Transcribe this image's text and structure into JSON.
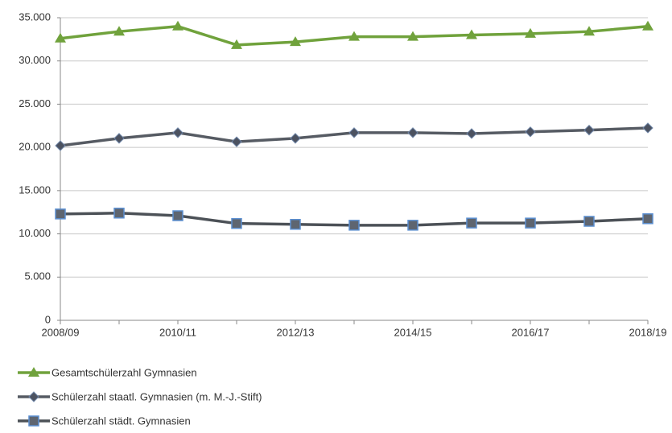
{
  "chart_data": {
    "type": "line",
    "categories": [
      "2008/09",
      null,
      "2010/11",
      null,
      "2012/13",
      null,
      "2014/15",
      null,
      "2016/17",
      null,
      "2018/19"
    ],
    "series": [
      {
        "name": "Gesamtschülerzahl Gymnasien",
        "color": "#70a23c",
        "marker": "triangle",
        "values": [
          32600,
          33400,
          34000,
          31850,
          32200,
          32800,
          32800,
          33000,
          33150,
          33400,
          34000
        ]
      },
      {
        "name": "Schülerzahl staatl. Gymnasien (m. M.-J.-Stift)",
        "color": "#565b63",
        "marker": "diamond",
        "values": [
          20200,
          21050,
          21700,
          20650,
          21050,
          21700,
          21700,
          21600,
          21800,
          22000,
          22250
        ]
      },
      {
        "name": "Schülerzahl städt. Gymnasien",
        "color": "#4c5157",
        "marker": "square",
        "values": [
          12300,
          12400,
          12100,
          11200,
          11100,
          11000,
          11000,
          11250,
          11250,
          11450,
          11750
        ]
      }
    ],
    "ylim": [
      0,
      35000
    ],
    "yticks": [
      0,
      {
        "value": 5000,
        "label": "5.000"
      },
      {
        "value": 10000,
        "label": "10.000"
      },
      {
        "value": 15000,
        "label": "15.000"
      },
      {
        "value": 20000,
        "label": "20.000"
      },
      {
        "value": 25000,
        "label": "25.000"
      },
      {
        "value": 30000,
        "label": "30.000"
      },
      {
        "value": 35000,
        "label": "35.000"
      }
    ],
    "grid": true,
    "legend": "bottom"
  }
}
